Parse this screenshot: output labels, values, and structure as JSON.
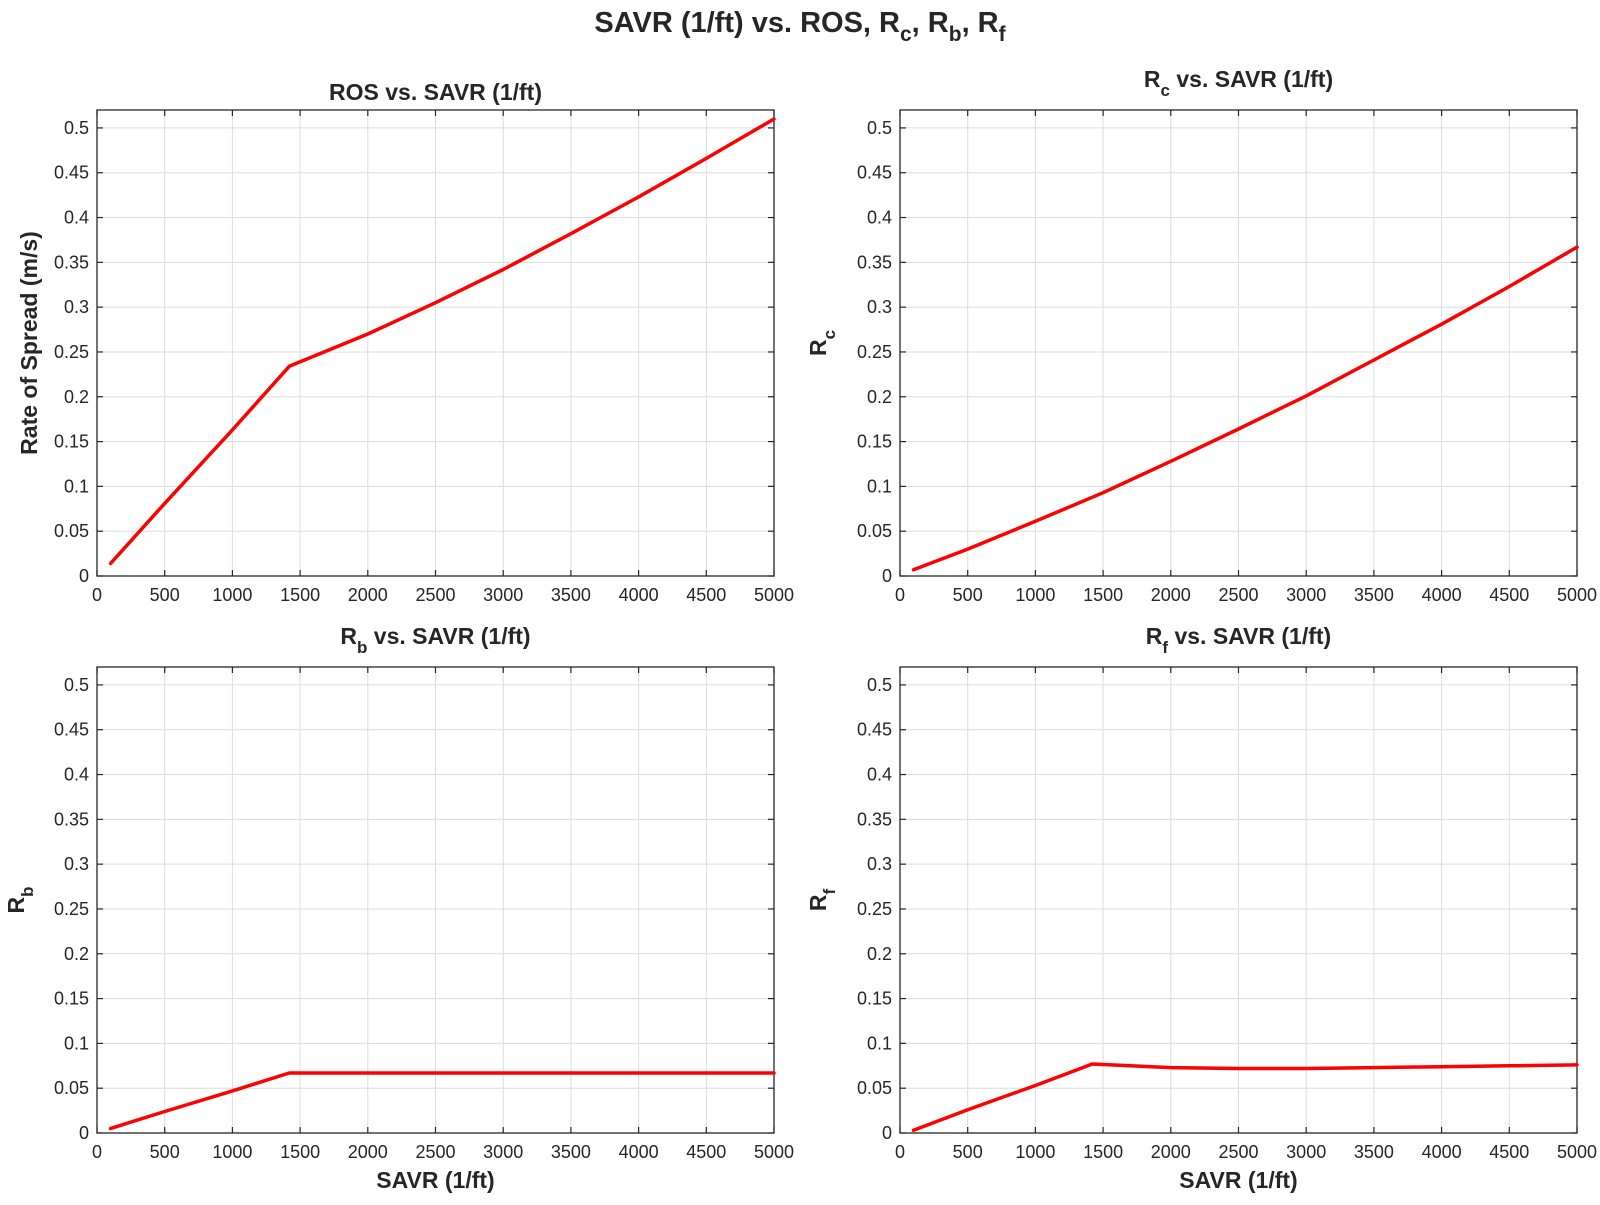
{
  "figure": {
    "title": {
      "main": "SAVR (1/ft) vs. ROS, R",
      "parts": [
        {
          "t": "SAVR (1/ft) vs. ROS, R",
          "s": ""
        },
        {
          "t": "",
          "s": "c"
        },
        {
          "t": ", R",
          "s": ""
        },
        {
          "t": "",
          "s": "b"
        },
        {
          "t": ", R",
          "s": ""
        },
        {
          "t": "",
          "s": "f"
        }
      ]
    }
  },
  "chart_data": [
    {
      "type": "line",
      "title": {
        "base": "ROS",
        "sub": "",
        "rest": " vs. SAVR (1/ft)"
      },
      "xlabel": "",
      "ylabel": {
        "base": "Rate of Spread (m/s)",
        "sub": ""
      },
      "xlim": [
        0,
        5000
      ],
      "ylim": [
        0,
        0.5
      ],
      "xticks": [
        0,
        500,
        1000,
        1500,
        2000,
        2500,
        3000,
        3500,
        4000,
        4500,
        5000
      ],
      "yticks": [
        0,
        0.05,
        0.1,
        0.15,
        0.2,
        0.25,
        0.3,
        0.35,
        0.4,
        0.45,
        0.5
      ],
      "grid": true,
      "color": "#ff0000",
      "x": [
        100,
        500,
        1000,
        1420,
        2000,
        2500,
        3000,
        3500,
        4000,
        4500,
        5000
      ],
      "y": [
        0.014,
        0.081,
        0.163,
        0.234,
        0.27,
        0.305,
        0.342,
        0.382,
        0.423,
        0.466,
        0.51
      ]
    },
    {
      "type": "line",
      "title": {
        "base": "R",
        "sub": "c",
        "rest": " vs. SAVR (1/ft)"
      },
      "xlabel": "",
      "ylabel": {
        "base": "R",
        "sub": "c"
      },
      "xlim": [
        0,
        5000
      ],
      "ylim": [
        0,
        0.5
      ],
      "xticks": [
        0,
        500,
        1000,
        1500,
        2000,
        2500,
        3000,
        3500,
        4000,
        4500,
        5000
      ],
      "yticks": [
        0,
        0.05,
        0.1,
        0.15,
        0.2,
        0.25,
        0.3,
        0.35,
        0.4,
        0.45,
        0.5
      ],
      "grid": true,
      "color": "#ff0000",
      "x": [
        100,
        500,
        1000,
        1500,
        2000,
        2500,
        3000,
        3500,
        4000,
        4500,
        5000
      ],
      "y": [
        0.007,
        0.03,
        0.061,
        0.093,
        0.128,
        0.164,
        0.201,
        0.241,
        0.281,
        0.323,
        0.367
      ]
    },
    {
      "type": "line",
      "title": {
        "base": "R",
        "sub": "b",
        "rest": " vs. SAVR (1/ft)"
      },
      "xlabel": "SAVR (1/ft)",
      "ylabel": {
        "base": "R",
        "sub": "b"
      },
      "xlim": [
        0,
        5000
      ],
      "ylim": [
        0,
        0.5
      ],
      "xticks": [
        0,
        500,
        1000,
        1500,
        2000,
        2500,
        3000,
        3500,
        4000,
        4500,
        5000
      ],
      "yticks": [
        0,
        0.05,
        0.1,
        0.15,
        0.2,
        0.25,
        0.3,
        0.35,
        0.4,
        0.45,
        0.5
      ],
      "grid": true,
      "color": "#ff0000",
      "x": [
        100,
        500,
        1000,
        1420,
        2000,
        3000,
        4000,
        5000
      ],
      "y": [
        0.005,
        0.024,
        0.047,
        0.067,
        0.067,
        0.067,
        0.067,
        0.067
      ]
    },
    {
      "type": "line",
      "title": {
        "base": "R",
        "sub": "f",
        "rest": " vs. SAVR (1/ft)"
      },
      "xlabel": "SAVR (1/ft)",
      "ylabel": {
        "base": "R",
        "sub": "f"
      },
      "xlim": [
        0,
        5000
      ],
      "ylim": [
        0,
        0.5
      ],
      "xticks": [
        0,
        500,
        1000,
        1500,
        2000,
        2500,
        3000,
        3500,
        4000,
        4500,
        5000
      ],
      "yticks": [
        0,
        0.05,
        0.1,
        0.15,
        0.2,
        0.25,
        0.3,
        0.35,
        0.4,
        0.45,
        0.5
      ],
      "grid": true,
      "color": "#ff0000",
      "x": [
        100,
        500,
        1000,
        1420,
        2000,
        2500,
        3000,
        3500,
        4000,
        4500,
        5000
      ],
      "y": [
        0.003,
        0.026,
        0.053,
        0.077,
        0.073,
        0.072,
        0.072,
        0.073,
        0.074,
        0.075,
        0.076
      ]
    }
  ]
}
